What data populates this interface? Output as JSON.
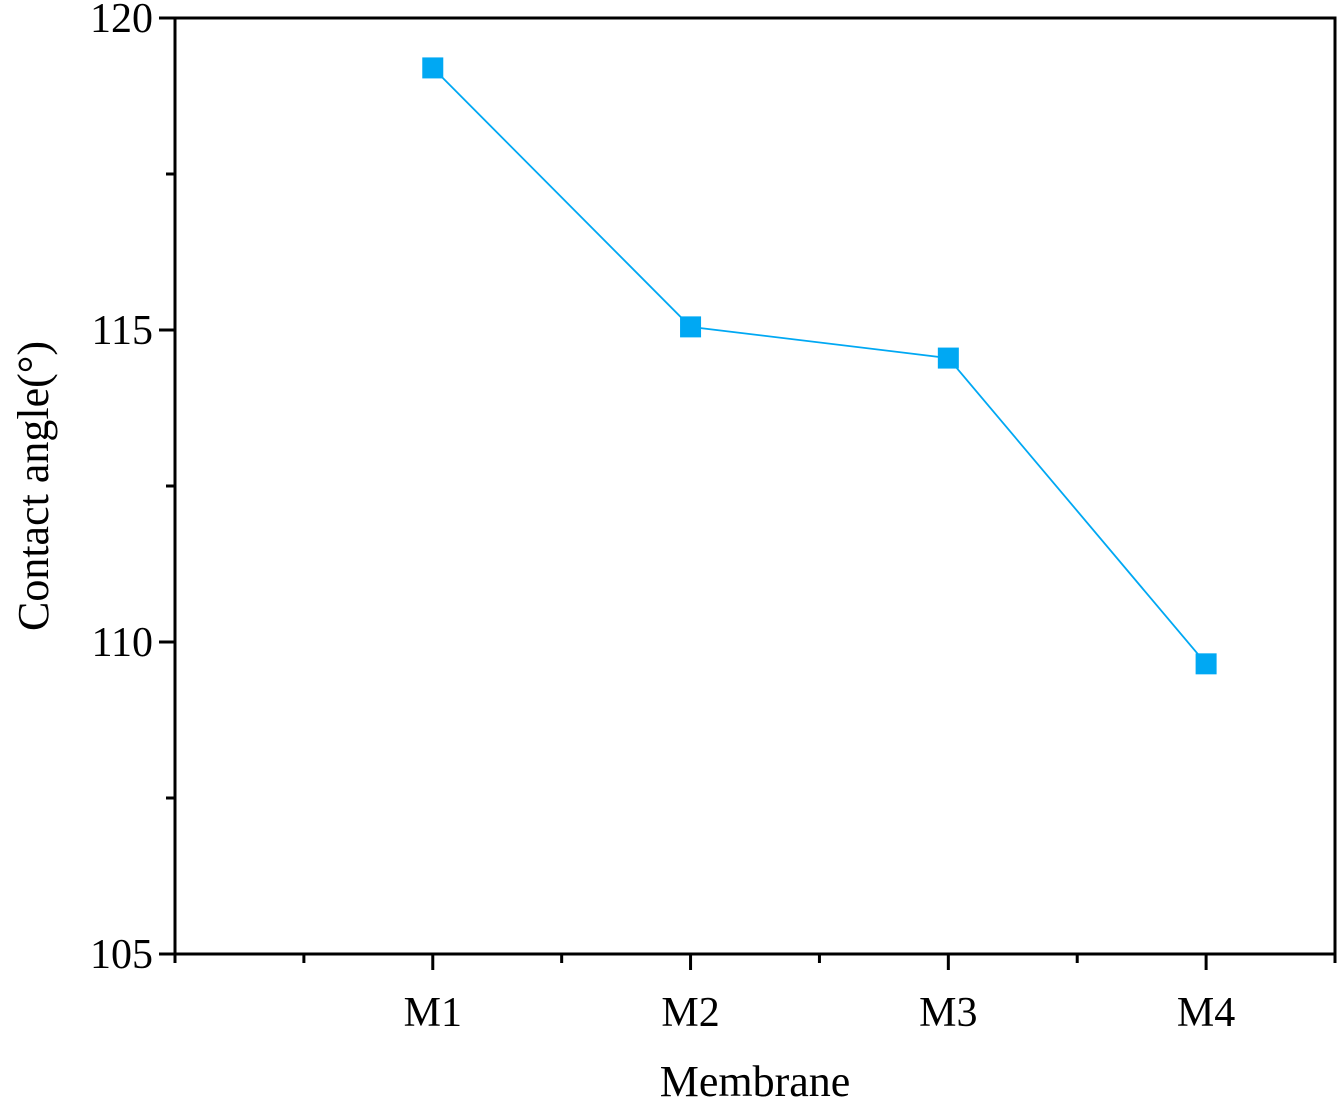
{
  "chart_data": {
    "type": "line",
    "title": "",
    "xlabel": "Membrane",
    "ylabel": "Contact angle(°)",
    "categories": [
      "M1",
      "M2",
      "M3",
      "M4"
    ],
    "series": [
      {
        "values": [
          119.2,
          115.05,
          114.55,
          109.65
        ],
        "color": "#00a8f3"
      }
    ],
    "ylim": [
      105,
      120
    ],
    "yticks": [
      105,
      110,
      115,
      120
    ],
    "yminor_step": 2.5,
    "xlim": [
      0,
      4.5
    ],
    "grid": false,
    "legend": "none",
    "marker": "square"
  }
}
